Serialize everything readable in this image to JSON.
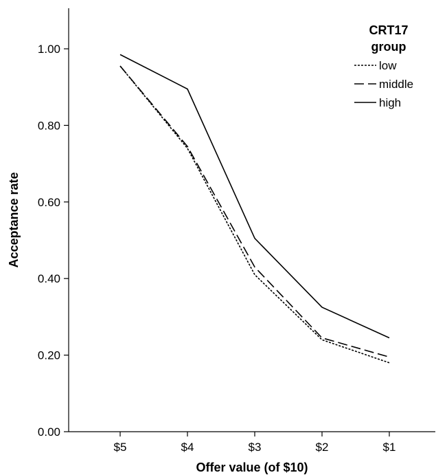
{
  "chart_data": {
    "type": "line",
    "xlabel": "Offer value (of $10)",
    "ylabel": "Acceptance rate",
    "categories": [
      "$5",
      "$4",
      "$3",
      "$2",
      "$1"
    ],
    "ylim": [
      0,
      1.1
    ],
    "yticks": [
      "0.00",
      "0.20",
      "0.40",
      "0.60",
      "0.80",
      "1.00"
    ],
    "grid": false,
    "legend": {
      "title_line1": "CRT17",
      "title_line2": "group",
      "position": "top-right"
    },
    "series": [
      {
        "name": "low",
        "style": "dotted",
        "values": [
          0.955,
          0.74,
          0.41,
          0.24,
          0.18
        ]
      },
      {
        "name": "middle",
        "style": "dashed",
        "values": [
          0.955,
          0.745,
          0.43,
          0.245,
          0.195
        ]
      },
      {
        "name": "high",
        "style": "solid",
        "values": [
          0.985,
          0.895,
          0.505,
          0.325,
          0.245
        ]
      }
    ],
    "line_color": "#000000"
  }
}
